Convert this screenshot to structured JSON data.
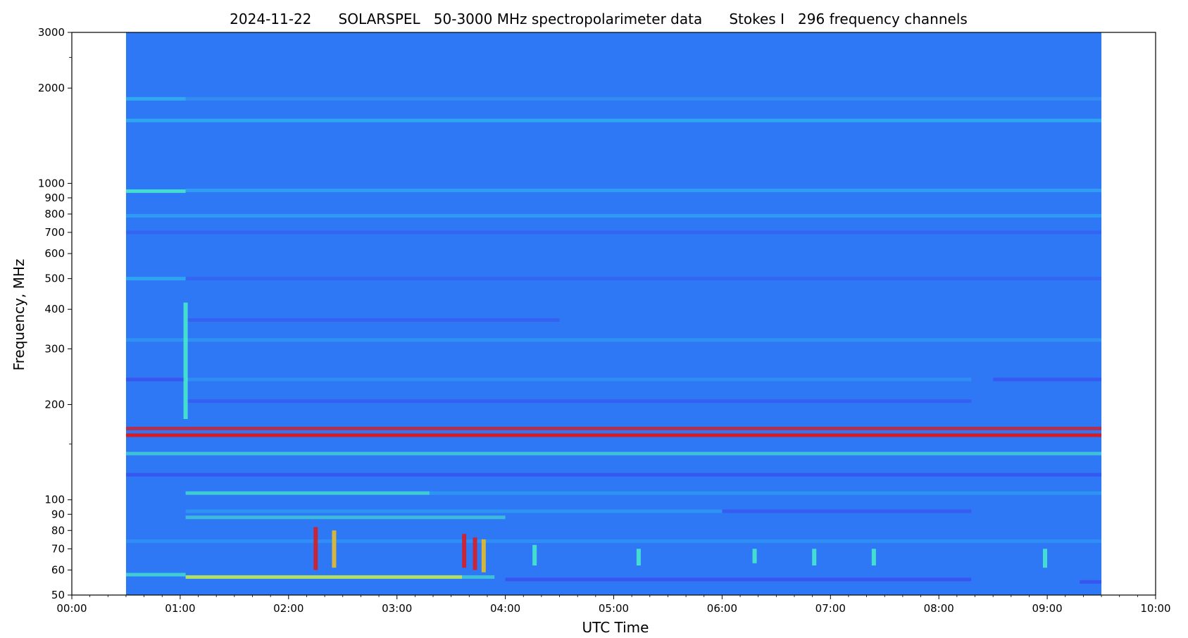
{
  "chart_data": {
    "type": "heatmap",
    "title": "2024-11-22      SOLARSPEL   50-3000 MHz spectropolarimeter data      Stokes I   296 frequency channels",
    "xlabel": "UTC Time",
    "ylabel": "Frequency, MHz",
    "x_range_hours": [
      0,
      10
    ],
    "data_range_hours": [
      0.5,
      9.5
    ],
    "y_range_mhz": [
      50,
      3000
    ],
    "y_scale": "log",
    "x_ticks": [
      {
        "value": 0,
        "label": "00:00"
      },
      {
        "value": 1,
        "label": "01:00"
      },
      {
        "value": 2,
        "label": "02:00"
      },
      {
        "value": 3,
        "label": "03:00"
      },
      {
        "value": 4,
        "label": "04:00"
      },
      {
        "value": 5,
        "label": "05:00"
      },
      {
        "value": 6,
        "label": "06:00"
      },
      {
        "value": 7,
        "label": "07:00"
      },
      {
        "value": 8,
        "label": "08:00"
      },
      {
        "value": 9,
        "label": "09:00"
      },
      {
        "value": 10,
        "label": "10:00"
      }
    ],
    "y_ticks": [
      {
        "value": 50,
        "label": "50"
      },
      {
        "value": 60,
        "label": "60"
      },
      {
        "value": 70,
        "label": "70"
      },
      {
        "value": 80,
        "label": "80"
      },
      {
        "value": 90,
        "label": "90"
      },
      {
        "value": 100,
        "label": "100"
      },
      {
        "value": 200,
        "label": "200"
      },
      {
        "value": 300,
        "label": "300"
      },
      {
        "value": 400,
        "label": "400"
      },
      {
        "value": 500,
        "label": "500"
      },
      {
        "value": 600,
        "label": "600"
      },
      {
        "value": 700,
        "label": "700"
      },
      {
        "value": 800,
        "label": "800"
      },
      {
        "value": 900,
        "label": "900"
      },
      {
        "value": 1000,
        "label": "1000"
      },
      {
        "value": 2000,
        "label": "2000"
      },
      {
        "value": 3000,
        "label": "3000"
      }
    ],
    "y_minor_ticks": [
      150,
      2500
    ],
    "background_color": "#2f78f5",
    "colormap": [
      "#3b4cf0",
      "#2f78f5",
      "#2fb6f0",
      "#47f0c8",
      "#c8f04a",
      "#f0c020",
      "#e01818"
    ],
    "bands": [
      {
        "freq": 1850,
        "t0": 0.5,
        "t1": 1.05,
        "color": "#2fb6f0",
        "opacity": 0.8
      },
      {
        "freq": 1850,
        "t0": 1.05,
        "t1": 9.5,
        "color": "#3aa0f2",
        "opacity": 0.5
      },
      {
        "freq": 1580,
        "t0": 0.5,
        "t1": 9.5,
        "color": "#2fb6f0",
        "opacity": 0.75
      },
      {
        "freq": 945,
        "t0": 0.5,
        "t1": 1.05,
        "color": "#47f0c8",
        "opacity": 0.85
      },
      {
        "freq": 950,
        "t0": 1.05,
        "t1": 9.5,
        "color": "#2fb6f0",
        "opacity": 0.6
      },
      {
        "freq": 790,
        "t0": 0.5,
        "t1": 9.5,
        "color": "#2fb6f0",
        "opacity": 0.55
      },
      {
        "freq": 700,
        "t0": 0.5,
        "t1": 9.5,
        "color": "#3b4cf0",
        "opacity": 0.45
      },
      {
        "freq": 500,
        "t0": 0.5,
        "t1": 1.05,
        "color": "#2fb6f0",
        "opacity": 0.7
      },
      {
        "freq": 500,
        "t0": 1.05,
        "t1": 9.5,
        "color": "#3b4cf0",
        "opacity": 0.4
      },
      {
        "freq": 370,
        "t0": 1.05,
        "t1": 4.5,
        "color": "#3b4cf0",
        "opacity": 0.5
      },
      {
        "freq": 320,
        "t0": 0.5,
        "t1": 9.5,
        "color": "#2fb6f0",
        "opacity": 0.4
      },
      {
        "freq": 240,
        "t0": 0.5,
        "t1": 1.05,
        "color": "#3b4cf0",
        "opacity": 0.8
      },
      {
        "freq": 240,
        "t0": 1.05,
        "t1": 8.3,
        "color": "#2fb6f0",
        "opacity": 0.35
      },
      {
        "freq": 240,
        "t0": 8.5,
        "t1": 9.5,
        "color": "#3b4cf0",
        "opacity": 0.7
      },
      {
        "freq": 205,
        "t0": 1.05,
        "t1": 8.3,
        "color": "#3b4cf0",
        "opacity": 0.55
      },
      {
        "freq": 168,
        "t0": 0.5,
        "t1": 9.5,
        "color": "#e01818",
        "opacity": 0.75
      },
      {
        "freq": 160,
        "t0": 0.5,
        "t1": 9.5,
        "color": "#e01818",
        "opacity": 0.95
      },
      {
        "freq": 140,
        "t0": 0.5,
        "t1": 9.5,
        "color": "#47f0c8",
        "opacity": 0.6
      },
      {
        "freq": 120,
        "t0": 0.5,
        "t1": 9.5,
        "color": "#3b4cf0",
        "opacity": 0.75
      },
      {
        "freq": 105,
        "t0": 1.05,
        "t1": 3.3,
        "color": "#47f0c8",
        "opacity": 0.7
      },
      {
        "freq": 105,
        "t0": 3.3,
        "t1": 9.5,
        "color": "#2fb6f0",
        "opacity": 0.45
      },
      {
        "freq": 92,
        "t0": 1.05,
        "t1": 8.3,
        "color": "#2fb6f0",
        "opacity": 0.45
      },
      {
        "freq": 92,
        "t0": 6.0,
        "t1": 8.3,
        "color": "#3b4cf0",
        "opacity": 0.8
      },
      {
        "freq": 88,
        "t0": 1.05,
        "t1": 4.0,
        "color": "#47f0c8",
        "opacity": 0.55
      },
      {
        "freq": 74,
        "t0": 0.5,
        "t1": 9.5,
        "color": "#2fb6f0",
        "opacity": 0.35
      },
      {
        "freq": 58,
        "t0": 0.5,
        "t1": 1.05,
        "color": "#47f0c8",
        "opacity": 0.7
      },
      {
        "freq": 57,
        "t0": 1.05,
        "t1": 3.6,
        "color": "#c8f04a",
        "opacity": 0.85
      },
      {
        "freq": 57,
        "t0": 3.6,
        "t1": 3.9,
        "color": "#47f0c8",
        "opacity": 0.6
      },
      {
        "freq": 56,
        "t0": 4.0,
        "t1": 8.3,
        "color": "#3b4cf0",
        "opacity": 0.8
      },
      {
        "freq": 55,
        "t0": 9.3,
        "t1": 9.5,
        "color": "#3b4cf0",
        "opacity": 0.8
      }
    ],
    "bursts": [
      {
        "t": 2.25,
        "f0": 60,
        "f1": 82,
        "color": "#e01818"
      },
      {
        "t": 2.42,
        "f0": 61,
        "f1": 80,
        "color": "#f0c020"
      },
      {
        "t": 3.62,
        "f0": 61,
        "f1": 78,
        "color": "#e01818"
      },
      {
        "t": 3.72,
        "f0": 60,
        "f1": 76,
        "color": "#e01818"
      },
      {
        "t": 3.8,
        "f0": 59,
        "f1": 75,
        "color": "#f0c020"
      },
      {
        "t": 4.27,
        "f0": 62,
        "f1": 72,
        "color": "#47f0c8"
      },
      {
        "t": 5.23,
        "f0": 62,
        "f1": 70,
        "color": "#47f0c8"
      },
      {
        "t": 6.3,
        "f0": 63,
        "f1": 70,
        "color": "#47f0c8"
      },
      {
        "t": 6.85,
        "f0": 62,
        "f1": 70,
        "color": "#47f0c8"
      },
      {
        "t": 7.4,
        "f0": 62,
        "f1": 70,
        "color": "#47f0c8"
      },
      {
        "t": 8.98,
        "f0": 61,
        "f1": 70,
        "color": "#47f0c8"
      },
      {
        "t": 1.05,
        "f0": 180,
        "f1": 420,
        "color": "#47f0c8"
      }
    ]
  }
}
